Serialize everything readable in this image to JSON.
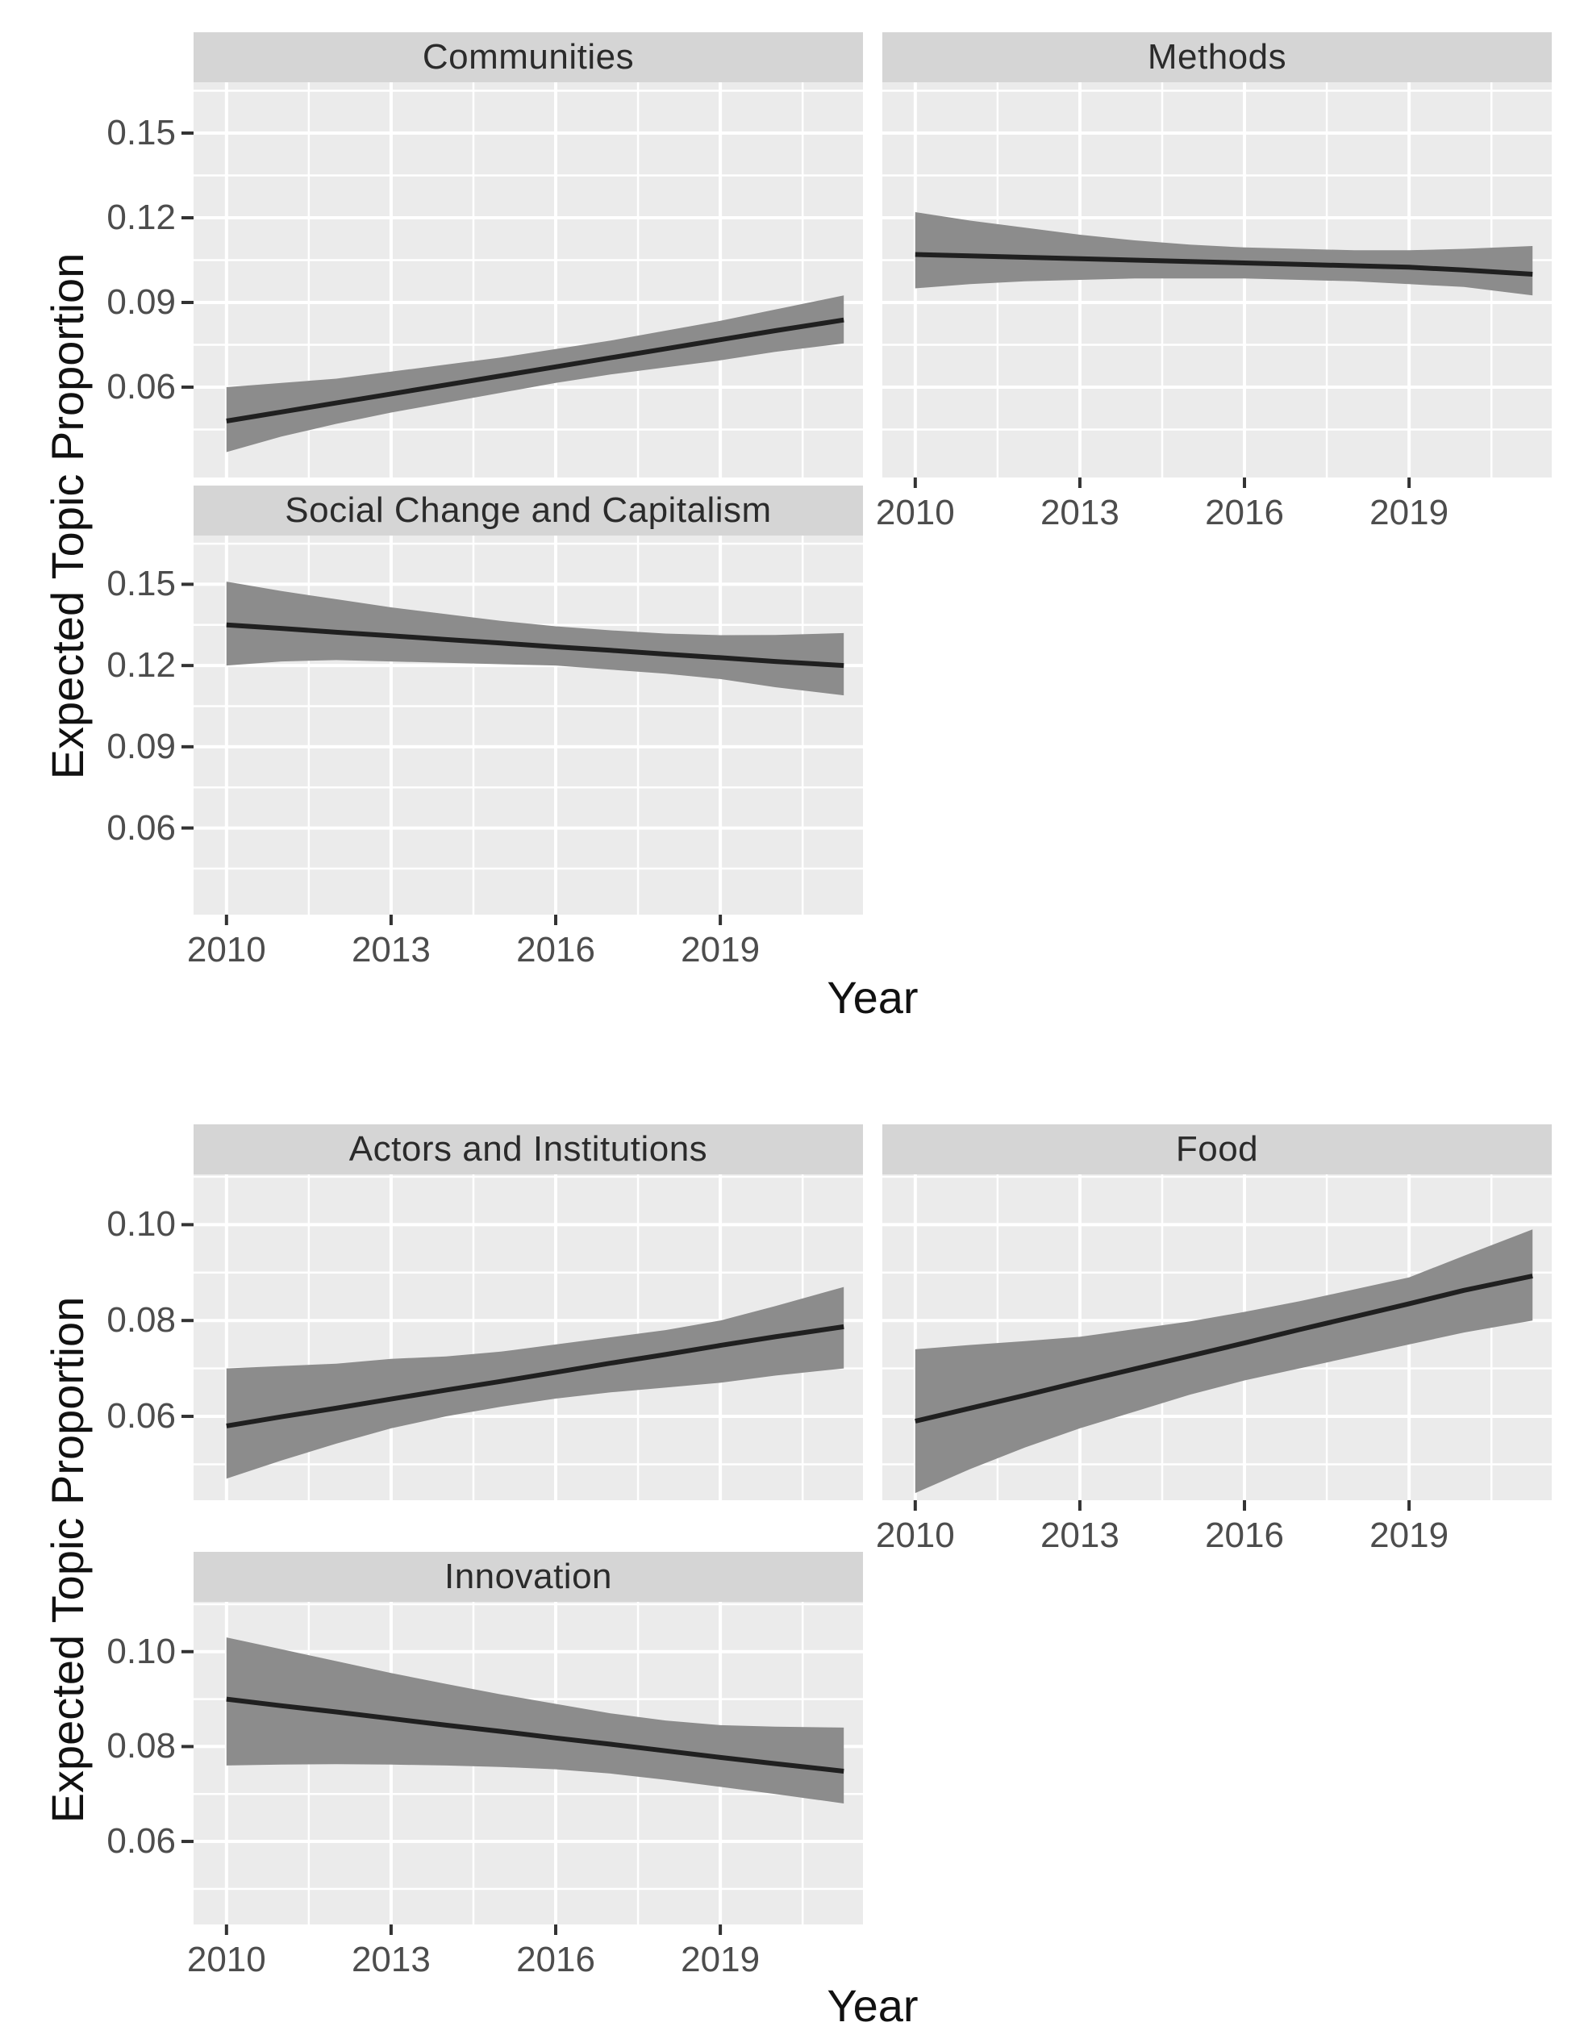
{
  "colors": {
    "page_bg": "#ffffff",
    "panel_bg": "#ebebeb",
    "strip_bg": "#d5d5d5",
    "grid_major": "#ffffff",
    "grid_minor": "#ffffff",
    "ribbon": "#8c8c8c",
    "trend_line": "#202020",
    "tick_mark": "#333333",
    "tick_label": "#4d4d4d",
    "axis_title": "#111111",
    "strip_text": "#2b2b2b"
  },
  "chart_data": [
    {
      "type": "line",
      "ribbon": true,
      "grid": true,
      "legend": "none",
      "y_label": "Expected Topic Proportion",
      "x_label": "Year",
      "x_domain": [
        2009.4,
        2021.6
      ],
      "y_domain": [
        0.028,
        0.168
      ],
      "x_ticks": [
        2010,
        2013,
        2016,
        2019
      ],
      "x_tick_labels": [
        "2010",
        "2013",
        "2016",
        "2019"
      ],
      "x_minor": [
        2011.5,
        2014.5,
        2017.5,
        2020.5
      ],
      "y_ticks": [
        0.15,
        0.12,
        0.09,
        0.06
      ],
      "y_tick_labels": [
        "0.15",
        "0.12",
        "0.09",
        "0.06"
      ],
      "y_minor": [
        0.045,
        0.075,
        0.105,
        0.135,
        0.165
      ],
      "facets": [
        {
          "title": "Communities",
          "col": 0,
          "row": 0,
          "show_y_axis": true,
          "show_x_axis": false,
          "x": [
            2010,
            2011,
            2012,
            2013,
            2014,
            2015,
            2016,
            2017,
            2018,
            2019,
            2020,
            2021.25
          ],
          "mean": [
            0.048,
            0.0512,
            0.0544,
            0.0576,
            0.0608,
            0.064,
            0.0672,
            0.0704,
            0.0736,
            0.0768,
            0.08,
            0.0838
          ],
          "lower": [
            0.037,
            0.0425,
            0.047,
            0.051,
            0.0545,
            0.058,
            0.0615,
            0.0645,
            0.067,
            0.0695,
            0.0725,
            0.0755
          ],
          "upper": [
            0.06,
            0.0615,
            0.063,
            0.0655,
            0.068,
            0.0705,
            0.0735,
            0.0765,
            0.08,
            0.0835,
            0.0875,
            0.0925
          ]
        },
        {
          "title": "Methods",
          "col": 1,
          "row": 0,
          "show_y_axis": false,
          "show_x_axis": true,
          "x": [
            2010,
            2011,
            2012,
            2013,
            2014,
            2015,
            2016,
            2017,
            2018,
            2019,
            2020,
            2021.25
          ],
          "mean": [
            0.107,
            0.1065,
            0.106,
            0.1055,
            0.105,
            0.1045,
            0.104,
            0.1035,
            0.103,
            0.1025,
            0.1015,
            0.1
          ],
          "lower": [
            0.095,
            0.0965,
            0.0975,
            0.098,
            0.0985,
            0.0985,
            0.0985,
            0.098,
            0.0975,
            0.0965,
            0.0955,
            0.0925
          ],
          "upper": [
            0.122,
            0.119,
            0.1165,
            0.114,
            0.112,
            0.1105,
            0.1095,
            0.109,
            0.1085,
            0.1085,
            0.109,
            0.11
          ]
        },
        {
          "title": "Social Change and Capitalism",
          "col": 0,
          "row": 1,
          "show_y_axis": true,
          "show_x_axis": true,
          "x": [
            2010,
            2011,
            2012,
            2013,
            2014,
            2015,
            2016,
            2017,
            2018,
            2019,
            2020,
            2021.25
          ],
          "mean": [
            0.135,
            0.1337,
            0.1323,
            0.131,
            0.1296,
            0.1283,
            0.1269,
            0.1256,
            0.1242,
            0.1229,
            0.1215,
            0.12
          ],
          "lower": [
            0.12,
            0.1215,
            0.122,
            0.1215,
            0.121,
            0.1205,
            0.12,
            0.1185,
            0.117,
            0.115,
            0.112,
            0.109
          ],
          "upper": [
            0.151,
            0.1475,
            0.1445,
            0.1415,
            0.139,
            0.1365,
            0.1345,
            0.133,
            0.1318,
            0.1312,
            0.1313,
            0.132
          ]
        }
      ]
    },
    {
      "type": "line",
      "ribbon": true,
      "grid": true,
      "legend": "none",
      "y_label": "Expected Topic Proportion",
      "x_label": "Year",
      "x_domain": [
        2009.4,
        2021.6
      ],
      "y_domain": [
        0.0425,
        0.1105
      ],
      "x_ticks": [
        2010,
        2013,
        2016,
        2019
      ],
      "x_tick_labels": [
        "2010",
        "2013",
        "2016",
        "2019"
      ],
      "x_minor": [
        2011.5,
        2014.5,
        2017.5,
        2020.5
      ],
      "y_ticks": [
        0.1,
        0.08,
        0.06
      ],
      "y_tick_labels": [
        "0.10",
        "0.08",
        "0.06"
      ],
      "y_minor": [
        0.05,
        0.07,
        0.09,
        0.11
      ],
      "facets": [
        {
          "title": "Actors and Institutions",
          "col": 0,
          "row": 0,
          "show_y_axis": true,
          "show_x_axis": false,
          "x": [
            2010,
            2011,
            2012,
            2013,
            2014,
            2015,
            2016,
            2017,
            2018,
            2019,
            2020,
            2021.25
          ],
          "mean": [
            0.058,
            0.0599,
            0.0617,
            0.0636,
            0.0655,
            0.0673,
            0.0692,
            0.0711,
            0.0729,
            0.0748,
            0.0766,
            0.0787
          ],
          "lower": [
            0.047,
            0.0508,
            0.0543,
            0.0575,
            0.06,
            0.062,
            0.0637,
            0.065,
            0.066,
            0.067,
            0.0685,
            0.07
          ],
          "upper": [
            0.07,
            0.0705,
            0.071,
            0.072,
            0.0725,
            0.0735,
            0.075,
            0.0765,
            0.078,
            0.08,
            0.083,
            0.087
          ]
        },
        {
          "title": "Food",
          "col": 1,
          "row": 0,
          "show_y_axis": false,
          "show_x_axis": true,
          "x": [
            2010,
            2011,
            2012,
            2013,
            2014,
            2015,
            2016,
            2017,
            2018,
            2019,
            2020,
            2021.25
          ],
          "mean": [
            0.059,
            0.0617,
            0.0644,
            0.0672,
            0.0699,
            0.0726,
            0.0753,
            0.0781,
            0.0808,
            0.0835,
            0.0863,
            0.0893
          ],
          "lower": [
            0.044,
            0.049,
            0.0535,
            0.0575,
            0.061,
            0.0645,
            0.0675,
            0.07,
            0.0725,
            0.075,
            0.0775,
            0.08
          ],
          "upper": [
            0.074,
            0.0749,
            0.0757,
            0.0766,
            0.0782,
            0.0798,
            0.0818,
            0.084,
            0.0865,
            0.089,
            0.0935,
            0.099
          ]
        },
        {
          "title": "Innovation",
          "col": 0,
          "row": 1,
          "show_y_axis": true,
          "show_x_axis": true,
          "x": [
            2010,
            2011,
            2012,
            2013,
            2014,
            2015,
            2016,
            2017,
            2018,
            2019,
            2020,
            2021.25
          ],
          "mean": [
            0.09,
            0.0886,
            0.0873,
            0.0859,
            0.0845,
            0.0832,
            0.0818,
            0.0805,
            0.0791,
            0.0777,
            0.0764,
            0.0748
          ],
          "lower": [
            0.076,
            0.0762,
            0.0763,
            0.0762,
            0.076,
            0.0757,
            0.0752,
            0.0743,
            0.073,
            0.0715,
            0.07,
            0.068
          ],
          "upper": [
            0.103,
            0.1005,
            0.098,
            0.0955,
            0.0932,
            0.091,
            0.089,
            0.087,
            0.0855,
            0.0845,
            0.0842,
            0.084
          ]
        }
      ]
    }
  ]
}
